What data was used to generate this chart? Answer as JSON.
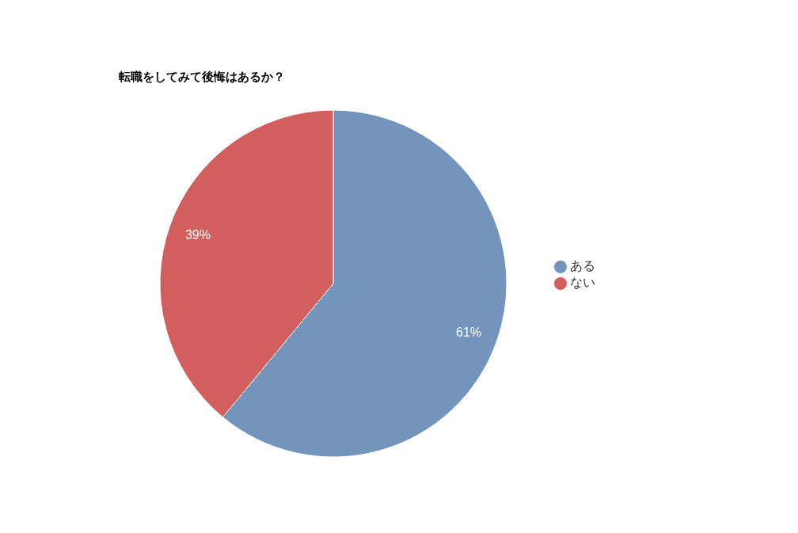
{
  "chart_data": {
    "type": "pie",
    "title": "転職をしてみて後悔はあるか？",
    "categories": [
      "ある",
      "ない"
    ],
    "values": [
      61,
      39
    ],
    "colors": [
      "#7495bb",
      "#d35e5e"
    ],
    "value_labels": [
      "61%",
      "39%"
    ],
    "legend": "right"
  }
}
